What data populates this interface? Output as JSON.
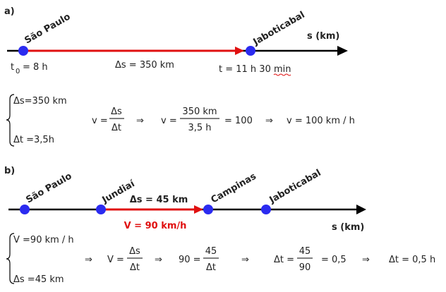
{
  "part_a": {
    "label": "a)",
    "cities": [
      "São Paulo",
      "Jaboticabal"
    ],
    "axis_label": "s (km)",
    "t0": {
      "symbol": "t",
      "subscript": "0",
      "rest": "= 8 h"
    },
    "displacement": "Δs = 350 km",
    "t_final": "t = 11 h 30 min",
    "system": [
      "Δs=350 km",
      "Δt =3,5h"
    ],
    "equation": [
      {
        "text": "v ="
      },
      {
        "num": "Δs",
        "den": "Δt"
      },
      {
        "text": "⇒"
      },
      {
        "text": "v ="
      },
      {
        "num": "350 km",
        "den": "3,5 h"
      },
      {
        "text": "= 100"
      },
      {
        "text": "⇒"
      },
      {
        "text": "v = 100 km / h"
      }
    ]
  },
  "part_b": {
    "label": "b)",
    "cities": [
      "São Paulo",
      "Jundiaí",
      "Campinas",
      "Jaboticabal"
    ],
    "axis_label": "s (km)",
    "displacement": "Δs = 45 km",
    "velocity": "V = 90 km/h",
    "system": [
      "V =90 km / h",
      "Δs =45 km"
    ],
    "equation": [
      {
        "text": "⇒"
      },
      {
        "text": "V ="
      },
      {
        "num": "Δs",
        "den": "Δt"
      },
      {
        "text": "⇒"
      },
      {
        "text": "90 ="
      },
      {
        "num": "45",
        "den": "Δt"
      },
      {
        "text": "⇒"
      },
      {
        "text": "Δt ="
      },
      {
        "num": "45",
        "den": "90"
      },
      {
        "text": "= 0,5"
      },
      {
        "text": "⇒"
      },
      {
        "text": "Δt = 0,5 h"
      }
    ]
  }
}
